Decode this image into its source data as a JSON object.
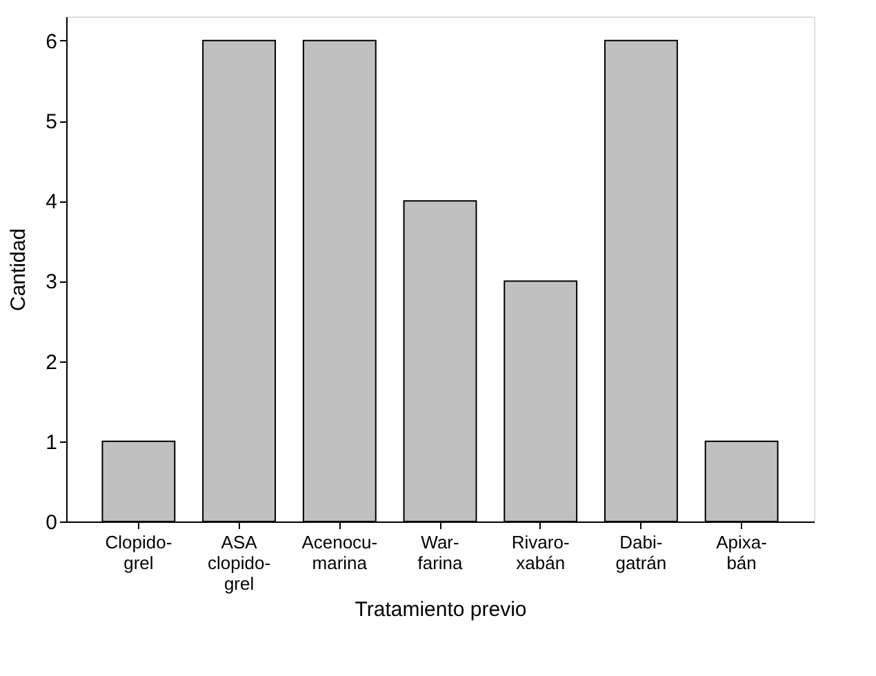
{
  "chart_data": {
    "type": "bar",
    "xlabel": "Tratamiento previo",
    "ylabel": "Cantidad",
    "categories": [
      "Clopido-\ngrel",
      "ASA\nclopido-\ngrel",
      "Acenocu-\nmarina",
      "War-\nfarina",
      "Rivaro-\nxabán",
      "Dabi-\ngatrán",
      "Apixa-\nbán"
    ],
    "values": [
      1,
      6,
      6,
      4,
      3,
      6,
      1
    ],
    "color": "#c0c0c0",
    "ylim": [
      0,
      6.3
    ],
    "yticks": [
      0,
      1,
      2,
      3,
      4,
      5,
      6
    ],
    "grid": false
  }
}
